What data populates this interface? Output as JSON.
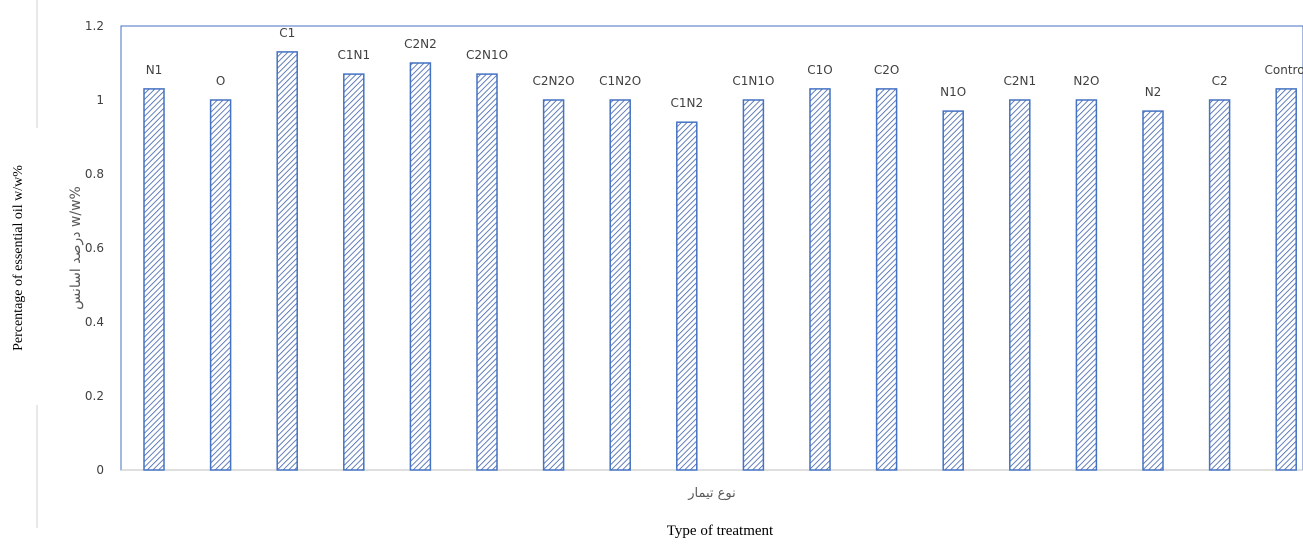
{
  "chart_data": {
    "type": "bar",
    "title": "",
    "xlabel_fa": "نوع تیمار",
    "xlabel_en": "Type of treatment",
    "ylabel_fa": "درصد اسانس w/w%",
    "ylabel_en": "Percentage of essential oil w/w%",
    "ylim": [
      0,
      1.2
    ],
    "yticks": [
      "0",
      "0.2",
      "0.4",
      "0.6",
      "0.8",
      "1",
      "1.2"
    ],
    "ytick_values": [
      0,
      0.2,
      0.4,
      0.6,
      0.8,
      1,
      1.2
    ],
    "grid": false,
    "legend": "none",
    "categories": [
      "N1",
      "O",
      "C1",
      "C1N1",
      "C2N2",
      "C2N1O",
      "C2N2O",
      "C1N2O",
      "C1N2",
      "C1N1O",
      "C1O",
      "C2O",
      "N1O",
      "C2N1",
      "N2O",
      "N2",
      "C2",
      "Control"
    ],
    "values": [
      1.03,
      1.0,
      1.13,
      1.07,
      1.1,
      1.07,
      1.0,
      1.0,
      0.94,
      1.0,
      1.03,
      1.03,
      0.97,
      1.0,
      1.0,
      0.97,
      1.0,
      1.03
    ],
    "colors": {
      "bar_stroke": "#4472C4",
      "hatch": "#3B5FA8",
      "axis": "#BFBFBF",
      "plot_border": "#4472C4",
      "text": "#404040"
    }
  }
}
